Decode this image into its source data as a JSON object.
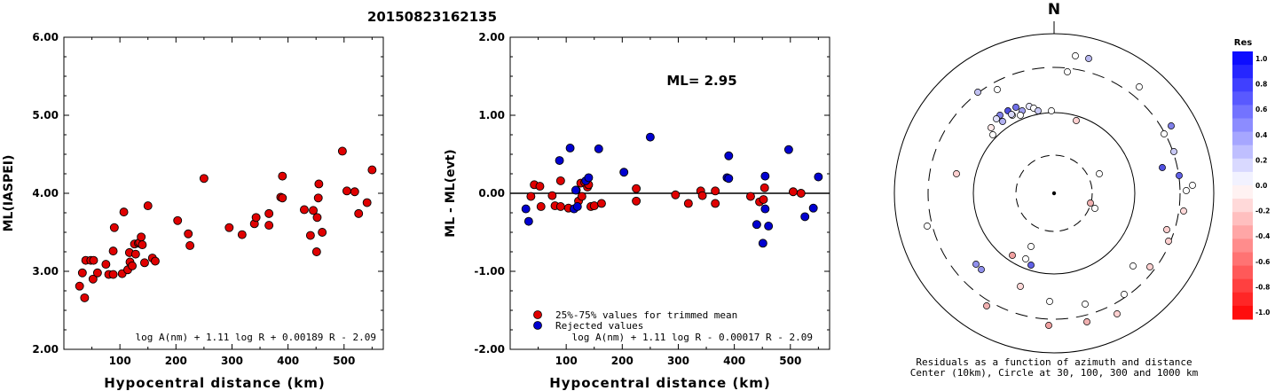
{
  "title": "20150823162135",
  "chart_data": [
    {
      "type": "scatter",
      "xlabel": "Hypocentral distance (km)",
      "ylabel": "ML(IASPEI)",
      "xlim": [
        0,
        570
      ],
      "ylim": [
        2.0,
        6.0
      ],
      "xticks": [
        "100",
        "200",
        "300",
        "400",
        "500"
      ],
      "yticks": [
        "2.00",
        "3.00",
        "4.00",
        "5.00",
        "6.00"
      ],
      "formula": "log A(nm) + 1.11 log R + 0.00189 R - 2.09",
      "series": [
        {
          "color": "#e00000",
          "points": [
            [
              28,
              2.81
            ],
            [
              33,
              2.98
            ],
            [
              37,
              2.66
            ],
            [
              39,
              3.14
            ],
            [
              48,
              3.14
            ],
            [
              52,
              2.9
            ],
            [
              53,
              3.14
            ],
            [
              60,
              2.98
            ],
            [
              75,
              3.09
            ],
            [
              80,
              2.96
            ],
            [
              88,
              2.96
            ],
            [
              88,
              3.26
            ],
            [
              90,
              3.56
            ],
            [
              104,
              2.97
            ],
            [
              107,
              3.76
            ],
            [
              114,
              3.02
            ],
            [
              117,
              3.24
            ],
            [
              118,
              3.12
            ],
            [
              122,
              3.07
            ],
            [
              126,
              3.35
            ],
            [
              128,
              3.22
            ],
            [
              133,
              3.36
            ],
            [
              135,
              3.37
            ],
            [
              138,
              3.44
            ],
            [
              140,
              3.34
            ],
            [
              144,
              3.11
            ],
            [
              150,
              3.84
            ],
            [
              158,
              3.17
            ],
            [
              163,
              3.13
            ],
            [
              203,
              3.65
            ],
            [
              222,
              3.48
            ],
            [
              225,
              3.33
            ],
            [
              250,
              4.19
            ],
            [
              295,
              3.56
            ],
            [
              318,
              3.47
            ],
            [
              340,
              3.61
            ],
            [
              343,
              3.69
            ],
            [
              366,
              3.59
            ],
            [
              366,
              3.74
            ],
            [
              387,
              3.95
            ],
            [
              390,
              4.22
            ],
            [
              390,
              3.94
            ],
            [
              429,
              3.79
            ],
            [
              440,
              3.46
            ],
            [
              445,
              3.78
            ],
            [
              451,
              3.25
            ],
            [
              452,
              3.69
            ],
            [
              454,
              3.94
            ],
            [
              455,
              4.12
            ],
            [
              461,
              3.5
            ],
            [
              497,
              4.54
            ],
            [
              505,
              4.03
            ],
            [
              519,
              4.02
            ],
            [
              526,
              3.74
            ],
            [
              541,
              3.88
            ],
            [
              550,
              4.3
            ]
          ]
        }
      ]
    },
    {
      "type": "scatter",
      "xlabel": "Hypocentral distance (km)",
      "ylabel": "ML - ML(evt)",
      "xlim": [
        0,
        570
      ],
      "ylim": [
        -2.0,
        2.0
      ],
      "xticks": [
        "100",
        "200",
        "300",
        "400",
        "500"
      ],
      "yticks": [
        "-2.00",
        "-1.00",
        "0.00",
        "1.00",
        "2.00"
      ],
      "annotation": "ML= 2.95",
      "formula": "log A(nm) + 1.11 log R - 0.00017 R - 2.09",
      "series": [
        {
          "name": "25%-75% values for trimmed mean",
          "color": "#e00000",
          "points": [
            [
              37,
              -0.04
            ],
            [
              43,
              0.11
            ],
            [
              53,
              0.09
            ],
            [
              55,
              -0.17
            ],
            [
              75,
              -0.03
            ],
            [
              80,
              -0.16
            ],
            [
              90,
              0.16
            ],
            [
              90,
              -0.17
            ],
            [
              104,
              -0.19
            ],
            [
              118,
              0.04
            ],
            [
              122,
              -0.1
            ],
            [
              126,
              0.13
            ],
            [
              128,
              -0.04
            ],
            [
              133,
              0.14
            ],
            [
              138,
              0.08
            ],
            [
              140,
              0.11
            ],
            [
              144,
              -0.17
            ],
            [
              150,
              -0.16
            ],
            [
              163,
              -0.13
            ],
            [
              225,
              0.06
            ],
            [
              225,
              -0.1
            ],
            [
              295,
              -0.02
            ],
            [
              318,
              -0.13
            ],
            [
              340,
              0.03
            ],
            [
              343,
              -0.03
            ],
            [
              366,
              0.03
            ],
            [
              366,
              -0.13
            ],
            [
              429,
              -0.04
            ],
            [
              445,
              -0.11
            ],
            [
              452,
              -0.08
            ],
            [
              454,
              0.07
            ],
            [
              505,
              0.02
            ],
            [
              519,
              0.0
            ]
          ]
        },
        {
          "name": "Rejected values",
          "color": "#0000d0",
          "points": [
            [
              28,
              -0.2
            ],
            [
              33,
              -0.36
            ],
            [
              88,
              0.42
            ],
            [
              107,
              0.58
            ],
            [
              114,
              -0.2
            ],
            [
              117,
              0.04
            ],
            [
              120,
              -0.17
            ],
            [
              135,
              0.16
            ],
            [
              140,
              0.2
            ],
            [
              158,
              0.57
            ],
            [
              203,
              0.27
            ],
            [
              250,
              0.72
            ],
            [
              387,
              0.2
            ],
            [
              390,
              0.48
            ],
            [
              390,
              0.19
            ],
            [
              440,
              -0.4
            ],
            [
              451,
              -0.64
            ],
            [
              455,
              0.22
            ],
            [
              455,
              -0.2
            ],
            [
              461,
              -0.42
            ],
            [
              497,
              0.56
            ],
            [
              526,
              -0.3
            ],
            [
              541,
              -0.19
            ],
            [
              550,
              0.21
            ]
          ]
        }
      ]
    },
    {
      "type": "scatter",
      "north_label": "N",
      "caption": [
        "Residuals as a function of azimuth and distance",
        "Center (10km), Circle at 30, 100, 300 and 1000 km"
      ],
      "colorbar": {
        "title": "Res",
        "ticks": [
          "1.0",
          "0.8",
          "0.6",
          "0.4",
          "0.2",
          "0.0",
          "-0.2",
          "-0.4",
          "-0.6",
          "-0.8",
          "-1.0"
        ]
      },
      "points": [
        [
          1212,
          63,
          "#ffffff"
        ],
        [
          1203,
          81,
          "#ffffff"
        ],
        [
          1227,
          66,
          "#b8b8f0"
        ],
        [
          1124,
          101,
          "#ffffff"
        ],
        [
          1102,
          104,
          "#c0c0f0"
        ],
        [
          1284,
          98,
          "#ffffff"
        ],
        [
          1145,
          121,
          "#7070e8"
        ],
        [
          1136,
          125,
          "#5050e0"
        ],
        [
          1152,
          125,
          "#a0a0f0"
        ],
        [
          1160,
          120,
          "#e8e8ff"
        ],
        [
          1165,
          122,
          "#ffffff"
        ],
        [
          1170,
          125,
          "#c8c8f4"
        ],
        [
          1127,
          130,
          "#8080ea"
        ],
        [
          1141,
          130,
          "#ffffff"
        ],
        [
          1150,
          130,
          "#ffffff"
        ],
        [
          1123,
          134,
          "#e0e0fa"
        ],
        [
          1130,
          137,
          "#b0b0f0"
        ],
        [
          1117,
          144,
          "#ffe8e8"
        ],
        [
          1119,
          152,
          "#ffffff"
        ],
        [
          1140,
          129,
          "#d8d8f8"
        ],
        [
          1185,
          125,
          "#ffffff"
        ],
        [
          1213,
          136,
          "#ffd0d0"
        ],
        [
          1320,
          142,
          "#8080ea"
        ],
        [
          1312,
          151,
          "#ffffff"
        ],
        [
          1323,
          171,
          "#c8c8f4"
        ],
        [
          1310,
          189,
          "#5050e0"
        ],
        [
          1329,
          198,
          "#6060e6"
        ],
        [
          1344,
          209,
          "#ffffff"
        ],
        [
          1337,
          215,
          "#ffffff"
        ],
        [
          1078,
          196,
          "#ffd0d0"
        ],
        [
          1239,
          196,
          "#ffffff"
        ],
        [
          1229,
          229,
          "#f0b0b0"
        ],
        [
          1234,
          235,
          "#ffffff"
        ],
        [
          1334,
          238,
          "#ffd8d8"
        ],
        [
          1045,
          255,
          "#ffffff"
        ],
        [
          1315,
          259,
          "#ffd0d0"
        ],
        [
          1317,
          272,
          "#ffd0d0"
        ],
        [
          1162,
          278,
          "#ffffff"
        ],
        [
          1141,
          288,
          "#f0a0a0"
        ],
        [
          1156,
          292,
          "#ffffff"
        ],
        [
          1162,
          299,
          "#6060e6"
        ],
        [
          1100,
          298,
          "#9090ec"
        ],
        [
          1106,
          304,
          "#9090ec"
        ],
        [
          1277,
          300,
          "#ffffff"
        ],
        [
          1296,
          301,
          "#ffd0d0"
        ],
        [
          1150,
          323,
          "#ffd8d8"
        ],
        [
          1267,
          332,
          "#ffffff"
        ],
        [
          1112,
          345,
          "#f0b0b0"
        ],
        [
          1183,
          340,
          "#ffffff"
        ],
        [
          1223,
          343,
          "#ffffff"
        ],
        [
          1259,
          354,
          "#ffd0d0"
        ],
        [
          1182,
          367,
          "#f0a0a0"
        ],
        [
          1225,
          363,
          "#f0b0b0"
        ]
      ]
    }
  ]
}
